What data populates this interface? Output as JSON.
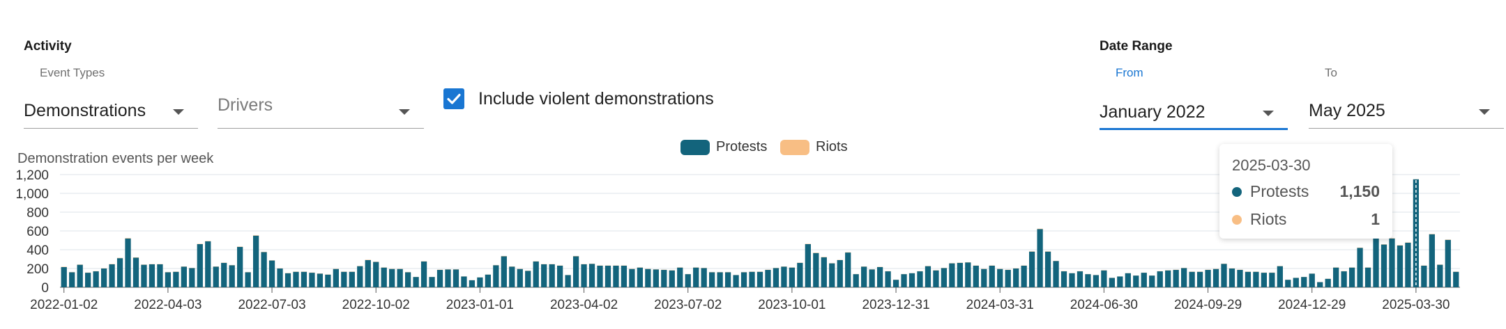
{
  "activity": {
    "title": "Activity",
    "event_types_label": "Event Types",
    "event_type_value": "Demonstrations",
    "drivers_placeholder": "Drivers",
    "include_violent_label": "Include violent demonstrations",
    "include_violent_checked": true
  },
  "date_range": {
    "title": "Date Range",
    "from_label": "From",
    "from_value": "January 2022",
    "to_label": "To",
    "to_value": "May 2025"
  },
  "legend": [
    {
      "label": "Protests",
      "color": "#13647c"
    },
    {
      "label": "Riots",
      "color": "#f8be84"
    }
  ],
  "tooltip": {
    "date": "2025-03-30",
    "rows": [
      {
        "name": "Protests",
        "value": "1,150",
        "color": "#13647c"
      },
      {
        "name": "Riots",
        "value": "1",
        "color": "#f8be84"
      }
    ]
  },
  "chart_data": {
    "type": "bar",
    "title": "Demonstration events per week",
    "ylim": [
      0,
      1200
    ],
    "y_ticks": [
      "0",
      "200",
      "400",
      "600",
      "800",
      "1,000",
      "1,200"
    ],
    "x_tick_labels": [
      "2022-01-02",
      "2022-04-03",
      "2022-07-03",
      "2022-10-02",
      "2023-01-01",
      "2023-04-02",
      "2023-07-02",
      "2023-10-01",
      "2023-12-31",
      "2024-03-31",
      "2024-06-30",
      "2024-09-29",
      "2024-12-29",
      "2025-03-30"
    ],
    "x_start": "2022-01-02",
    "x_interval": "1 week",
    "hover_index": 169,
    "series": [
      {
        "name": "Protests",
        "color": "#13647c",
        "values": [
          215,
          160,
          240,
          155,
          170,
          200,
          245,
          310,
          520,
          315,
          240,
          245,
          245,
          160,
          165,
          220,
          205,
          460,
          490,
          220,
          260,
          235,
          430,
          160,
          550,
          375,
          285,
          200,
          150,
          165,
          165,
          155,
          145,
          135,
          195,
          165,
          165,
          225,
          290,
          270,
          210,
          195,
          195,
          160,
          110,
          275,
          110,
          185,
          190,
          190,
          115,
          75,
          105,
          135,
          235,
          330,
          220,
          195,
          175,
          275,
          245,
          245,
          230,
          130,
          330,
          245,
          250,
          230,
          230,
          230,
          230,
          195,
          210,
          195,
          190,
          185,
          180,
          210,
          140,
          210,
          205,
          160,
          160,
          160,
          130,
          160,
          165,
          165,
          185,
          205,
          220,
          210,
          260,
          460,
          365,
          320,
          255,
          290,
          370,
          140,
          220,
          190,
          215,
          170,
          80,
          140,
          150,
          170,
          225,
          180,
          205,
          255,
          260,
          265,
          230,
          195,
          230,
          195,
          185,
          200,
          230,
          380,
          620,
          380,
          280,
          170,
          150,
          170,
          140,
          130,
          180,
          100,
          115,
          150,
          125,
          155,
          125,
          170,
          180,
          185,
          205,
          165,
          165,
          185,
          195,
          250,
          200,
          185,
          165,
          165,
          155,
          155,
          225,
          80,
          100,
          110,
          145,
          55,
          90,
          210,
          170,
          210,
          420,
          210,
          575,
          455,
          520,
          445,
          475,
          1150,
          230,
          565,
          240,
          505,
          165
        ]
      },
      {
        "name": "Riots",
        "color": "#f8be84",
        "values": [
          3,
          2,
          2,
          2,
          2,
          2,
          3,
          3,
          4,
          3,
          2,
          2,
          2,
          2,
          2,
          2,
          2,
          3,
          3,
          2,
          2,
          2,
          3,
          2,
          4,
          3,
          2,
          2,
          2,
          2,
          2,
          2,
          2,
          2,
          2,
          2,
          2,
          2,
          3,
          2,
          2,
          2,
          2,
          2,
          1,
          2,
          1,
          2,
          2,
          2,
          1,
          1,
          1,
          1,
          2,
          3,
          2,
          2,
          2,
          2,
          2,
          2,
          2,
          1,
          3,
          2,
          2,
          2,
          2,
          2,
          2,
          2,
          2,
          2,
          2,
          2,
          2,
          2,
          1,
          2,
          2,
          2,
          2,
          2,
          1,
          2,
          2,
          2,
          2,
          2,
          2,
          2,
          2,
          3,
          3,
          3,
          2,
          2,
          3,
          1,
          2,
          2,
          2,
          2,
          1,
          1,
          1,
          2,
          2,
          2,
          2,
          2,
          2,
          2,
          2,
          2,
          2,
          2,
          2,
          2,
          2,
          3,
          4,
          3,
          2,
          2,
          1,
          2,
          1,
          1,
          2,
          1,
          1,
          1,
          1,
          1,
          1,
          2,
          2,
          2,
          2,
          2,
          2,
          2,
          2,
          2,
          2,
          2,
          2,
          2,
          2,
          2,
          2,
          1,
          1,
          1,
          1,
          1,
          1,
          2,
          2,
          2,
          3,
          2,
          3,
          3,
          3,
          3,
          3,
          1,
          2,
          3,
          2,
          3,
          2
        ]
      }
    ]
  }
}
